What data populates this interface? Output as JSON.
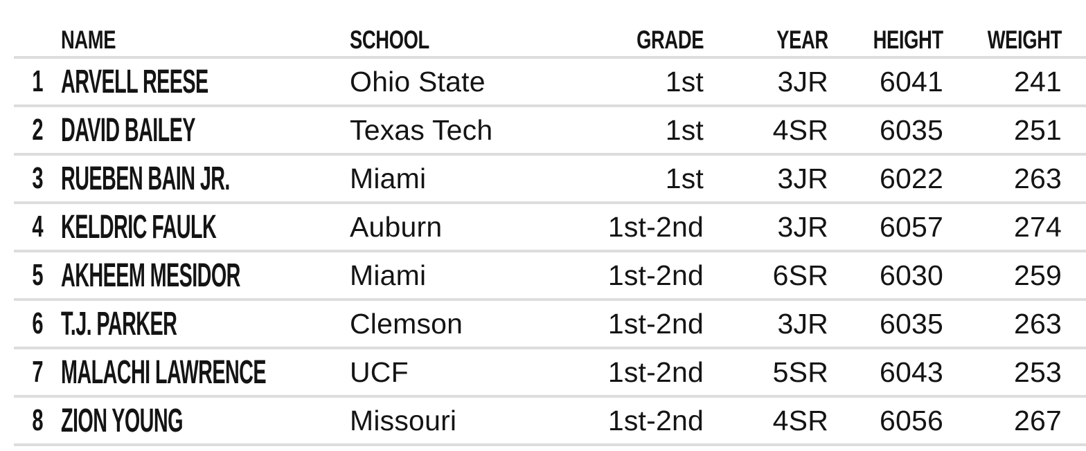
{
  "table": {
    "columns": [
      {
        "key": "name",
        "label": "NAME"
      },
      {
        "key": "school",
        "label": "SCHOOL"
      },
      {
        "key": "grade",
        "label": "GRADE"
      },
      {
        "key": "year",
        "label": "YEAR"
      },
      {
        "key": "height",
        "label": "HEIGHT"
      },
      {
        "key": "weight",
        "label": "WEIGHT"
      }
    ],
    "rows": [
      {
        "rank": "1",
        "name": "ARVELL REESE",
        "school": "Ohio State",
        "grade": "1st",
        "year": "3JR",
        "height": "6041",
        "weight": "241"
      },
      {
        "rank": "2",
        "name": "DAVID BAILEY",
        "school": "Texas Tech",
        "grade": "1st",
        "year": "4SR",
        "height": "6035",
        "weight": "251"
      },
      {
        "rank": "3",
        "name": "RUEBEN BAIN JR.",
        "school": "Miami",
        "grade": "1st",
        "year": "3JR",
        "height": "6022",
        "weight": "263"
      },
      {
        "rank": "4",
        "name": "KELDRIC FAULK",
        "school": "Auburn",
        "grade": "1st-2nd",
        "year": "3JR",
        "height": "6057",
        "weight": "274"
      },
      {
        "rank": "5",
        "name": "AKHEEM MESIDOR",
        "school": "Miami",
        "grade": "1st-2nd",
        "year": "6SR",
        "height": "6030",
        "weight": "259"
      },
      {
        "rank": "6",
        "name": "T.J. PARKER",
        "school": "Clemson",
        "grade": "1st-2nd",
        "year": "3JR",
        "height": "6035",
        "weight": "263"
      },
      {
        "rank": "7",
        "name": "MALACHI LAWRENCE",
        "school": "UCF",
        "grade": "1st-2nd",
        "year": "5SR",
        "height": "6043",
        "weight": "253"
      },
      {
        "rank": "8",
        "name": "ZION YOUNG",
        "school": "Missouri",
        "grade": "1st-2nd",
        "year": "4SR",
        "height": "6056",
        "weight": "267"
      }
    ]
  },
  "colors": {
    "background": "#ffffff",
    "text": "#141414",
    "divider": "#dddddd"
  }
}
